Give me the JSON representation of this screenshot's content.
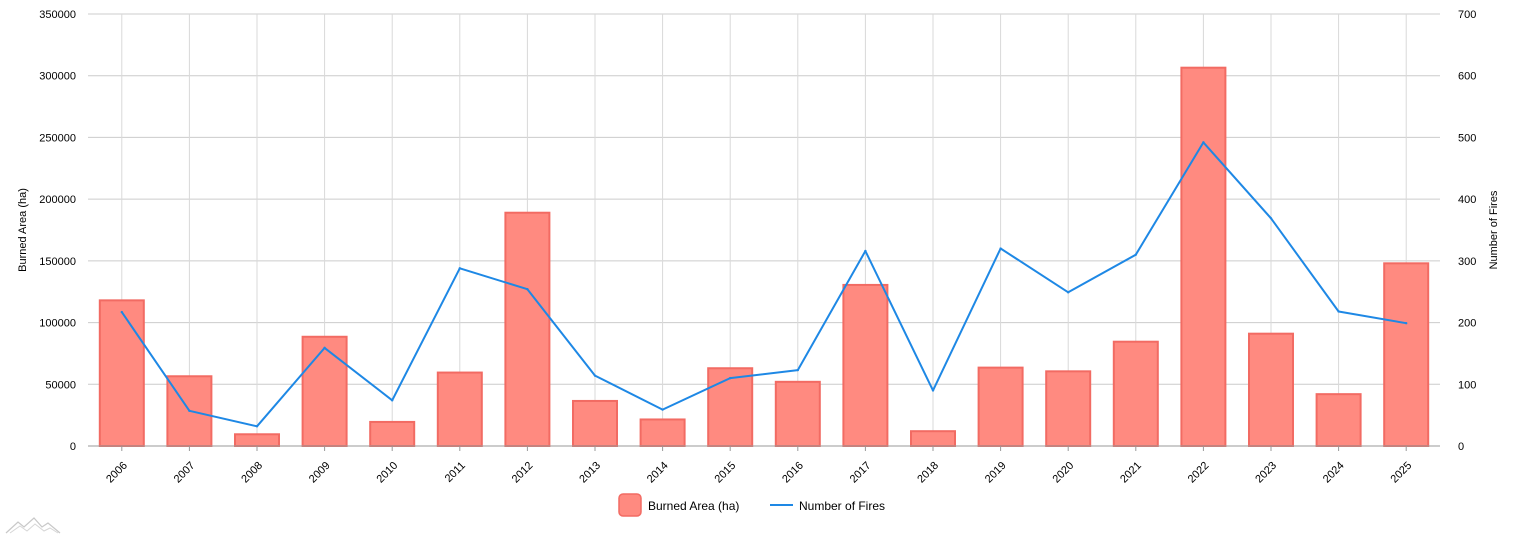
{
  "chart_data": {
    "type": "bar",
    "categories": [
      "2006",
      "2007",
      "2008",
      "2009",
      "2010",
      "2011",
      "2012",
      "2013",
      "2014",
      "2015",
      "2016",
      "2017",
      "2018",
      "2019",
      "2020",
      "2021",
      "2022",
      "2023",
      "2024",
      "2025"
    ],
    "series": [
      {
        "name": "Burned Area (ha)",
        "type": "bar",
        "axis": "left",
        "color": "#FF8A80",
        "stroke": "#F26B63",
        "values": [
          118000,
          56500,
          9500,
          88500,
          19500,
          59500,
          189000,
          36500,
          21500,
          63000,
          52000,
          130500,
          12000,
          63500,
          60500,
          84500,
          306500,
          91000,
          42000,
          148000
        ]
      },
      {
        "name": "Number of Fires",
        "type": "line",
        "axis": "right",
        "color": "#1E88E5",
        "values": [
          217,
          57,
          32,
          159,
          74,
          288,
          254,
          114,
          59,
          110,
          123,
          316,
          90,
          320,
          249,
          310,
          492,
          369,
          218,
          199
        ]
      }
    ],
    "ylabel": "Burned Area (ha)",
    "y2label": "Number of Fires",
    "ylim": [
      0,
      350000
    ],
    "y2lim": [
      0,
      700
    ],
    "yticks": [
      "0",
      "50000",
      "100000",
      "150000",
      "200000",
      "250000",
      "300000",
      "350000"
    ],
    "y2ticks": [
      "0",
      "100",
      "200",
      "300",
      "400",
      "500",
      "600",
      "700"
    ],
    "grid": true,
    "legend": "bottom-center"
  },
  "watermark": {
    "icon": "mountain-logo-icon"
  }
}
